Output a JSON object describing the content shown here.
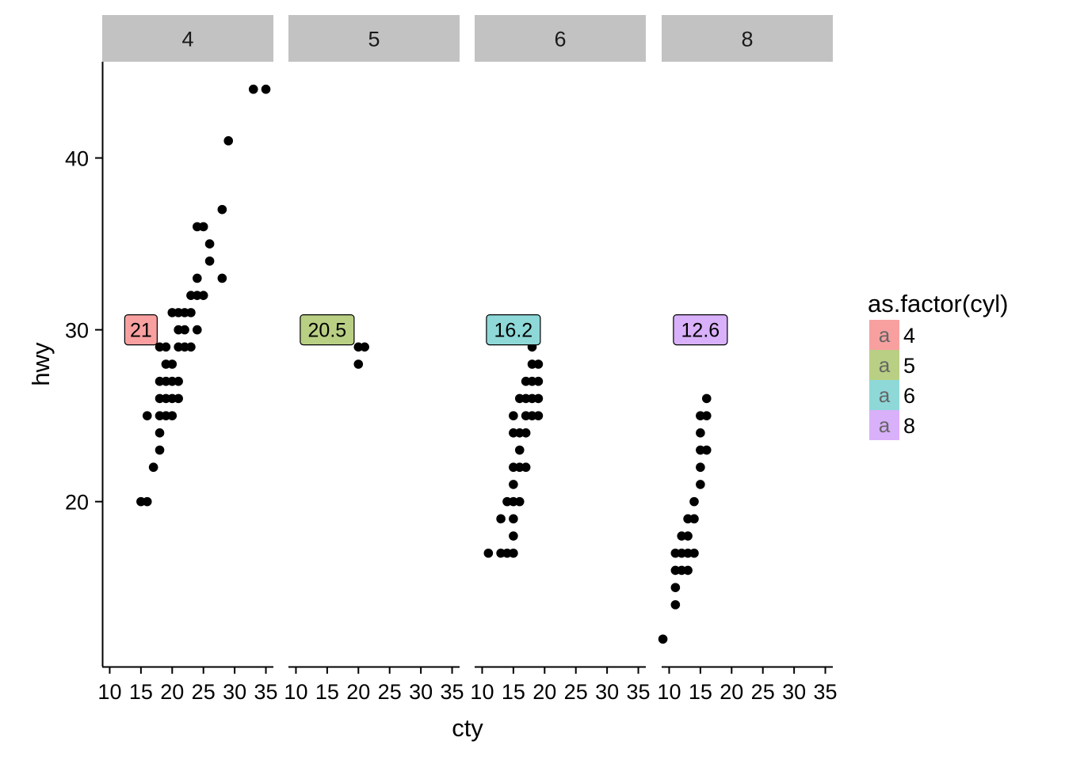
{
  "chart_data": {
    "type": "scatter",
    "facet_variable": "cyl",
    "panels": [
      {
        "facet": "4",
        "points": [
          [
            15,
            20
          ],
          [
            16,
            20
          ],
          [
            16,
            25
          ],
          [
            17,
            22
          ],
          [
            18,
            23
          ],
          [
            18,
            24
          ],
          [
            18,
            25
          ],
          [
            18,
            26
          ],
          [
            18,
            27
          ],
          [
            18,
            29
          ],
          [
            19,
            25
          ],
          [
            19,
            26
          ],
          [
            19,
            27
          ],
          [
            19,
            28
          ],
          [
            19,
            29
          ],
          [
            20,
            25
          ],
          [
            20,
            26
          ],
          [
            20,
            27
          ],
          [
            20,
            28
          ],
          [
            20,
            31
          ],
          [
            21,
            26
          ],
          [
            21,
            27
          ],
          [
            21,
            29
          ],
          [
            21,
            30
          ],
          [
            21,
            31
          ],
          [
            22,
            29
          ],
          [
            22,
            30
          ],
          [
            22,
            31
          ],
          [
            23,
            29
          ],
          [
            23,
            31
          ],
          [
            23,
            32
          ],
          [
            24,
            30
          ],
          [
            24,
            32
          ],
          [
            24,
            33
          ],
          [
            24,
            36
          ],
          [
            25,
            32
          ],
          [
            25,
            36
          ],
          [
            26,
            34
          ],
          [
            26,
            35
          ],
          [
            28,
            33
          ],
          [
            28,
            37
          ],
          [
            29,
            41
          ],
          [
            33,
            44
          ],
          [
            35,
            44
          ]
        ],
        "label": {
          "text": "21",
          "x": 15,
          "y": 30,
          "color": "#F8A0A0"
        }
      },
      {
        "facet": "5",
        "points": [
          [
            20,
            28
          ],
          [
            20,
            29
          ],
          [
            21,
            29
          ]
        ],
        "label": {
          "text": "20.5",
          "x": 15,
          "y": 30,
          "color": "#B9CF84"
        }
      },
      {
        "facet": "6",
        "points": [
          [
            11,
            17
          ],
          [
            13,
            17
          ],
          [
            13,
            19
          ],
          [
            14,
            17
          ],
          [
            14,
            20
          ],
          [
            15,
            17
          ],
          [
            15,
            18
          ],
          [
            15,
            19
          ],
          [
            15,
            20
          ],
          [
            15,
            21
          ],
          [
            15,
            22
          ],
          [
            15,
            24
          ],
          [
            15,
            25
          ],
          [
            16,
            20
          ],
          [
            16,
            22
          ],
          [
            16,
            23
          ],
          [
            16,
            24
          ],
          [
            16,
            26
          ],
          [
            17,
            22
          ],
          [
            17,
            24
          ],
          [
            17,
            25
          ],
          [
            17,
            26
          ],
          [
            17,
            27
          ],
          [
            18,
            25
          ],
          [
            18,
            26
          ],
          [
            18,
            27
          ],
          [
            18,
            28
          ],
          [
            18,
            29
          ],
          [
            19,
            25
          ],
          [
            19,
            26
          ],
          [
            19,
            27
          ],
          [
            19,
            28
          ]
        ],
        "label": {
          "text": "16.2",
          "x": 15,
          "y": 30,
          "color": "#8ED8D8"
        }
      },
      {
        "facet": "8",
        "points": [
          [
            9,
            12
          ],
          [
            11,
            14
          ],
          [
            11,
            15
          ],
          [
            11,
            16
          ],
          [
            11,
            17
          ],
          [
            12,
            16
          ],
          [
            12,
            17
          ],
          [
            12,
            18
          ],
          [
            13,
            16
          ],
          [
            13,
            17
          ],
          [
            13,
            18
          ],
          [
            13,
            19
          ],
          [
            14,
            17
          ],
          [
            14,
            19
          ],
          [
            14,
            20
          ],
          [
            15,
            21
          ],
          [
            15,
            22
          ],
          [
            15,
            23
          ],
          [
            15,
            24
          ],
          [
            15,
            25
          ],
          [
            16,
            23
          ],
          [
            16,
            25
          ],
          [
            16,
            26
          ]
        ],
        "label": {
          "text": "12.6",
          "x": 15,
          "y": 30,
          "color": "#D9B0FA"
        }
      }
    ],
    "xlabel": "cty",
    "ylabel": "hwy",
    "xlim": [
      8.8,
      36.2
    ],
    "ylim": [
      10.4,
      45.6
    ],
    "x_ticks": [
      10,
      15,
      20,
      25,
      30,
      35
    ],
    "y_ticks": [
      20,
      30,
      40
    ],
    "grid": false,
    "legend": {
      "title": "as.factor(cyl)",
      "position": "right",
      "key_glyph": "a",
      "items": [
        {
          "label": "4",
          "color": "#F8A0A0"
        },
        {
          "label": "5",
          "color": "#B9CF84"
        },
        {
          "label": "6",
          "color": "#8ED8D8"
        },
        {
          "label": "8",
          "color": "#D9B0FA"
        }
      ]
    }
  }
}
